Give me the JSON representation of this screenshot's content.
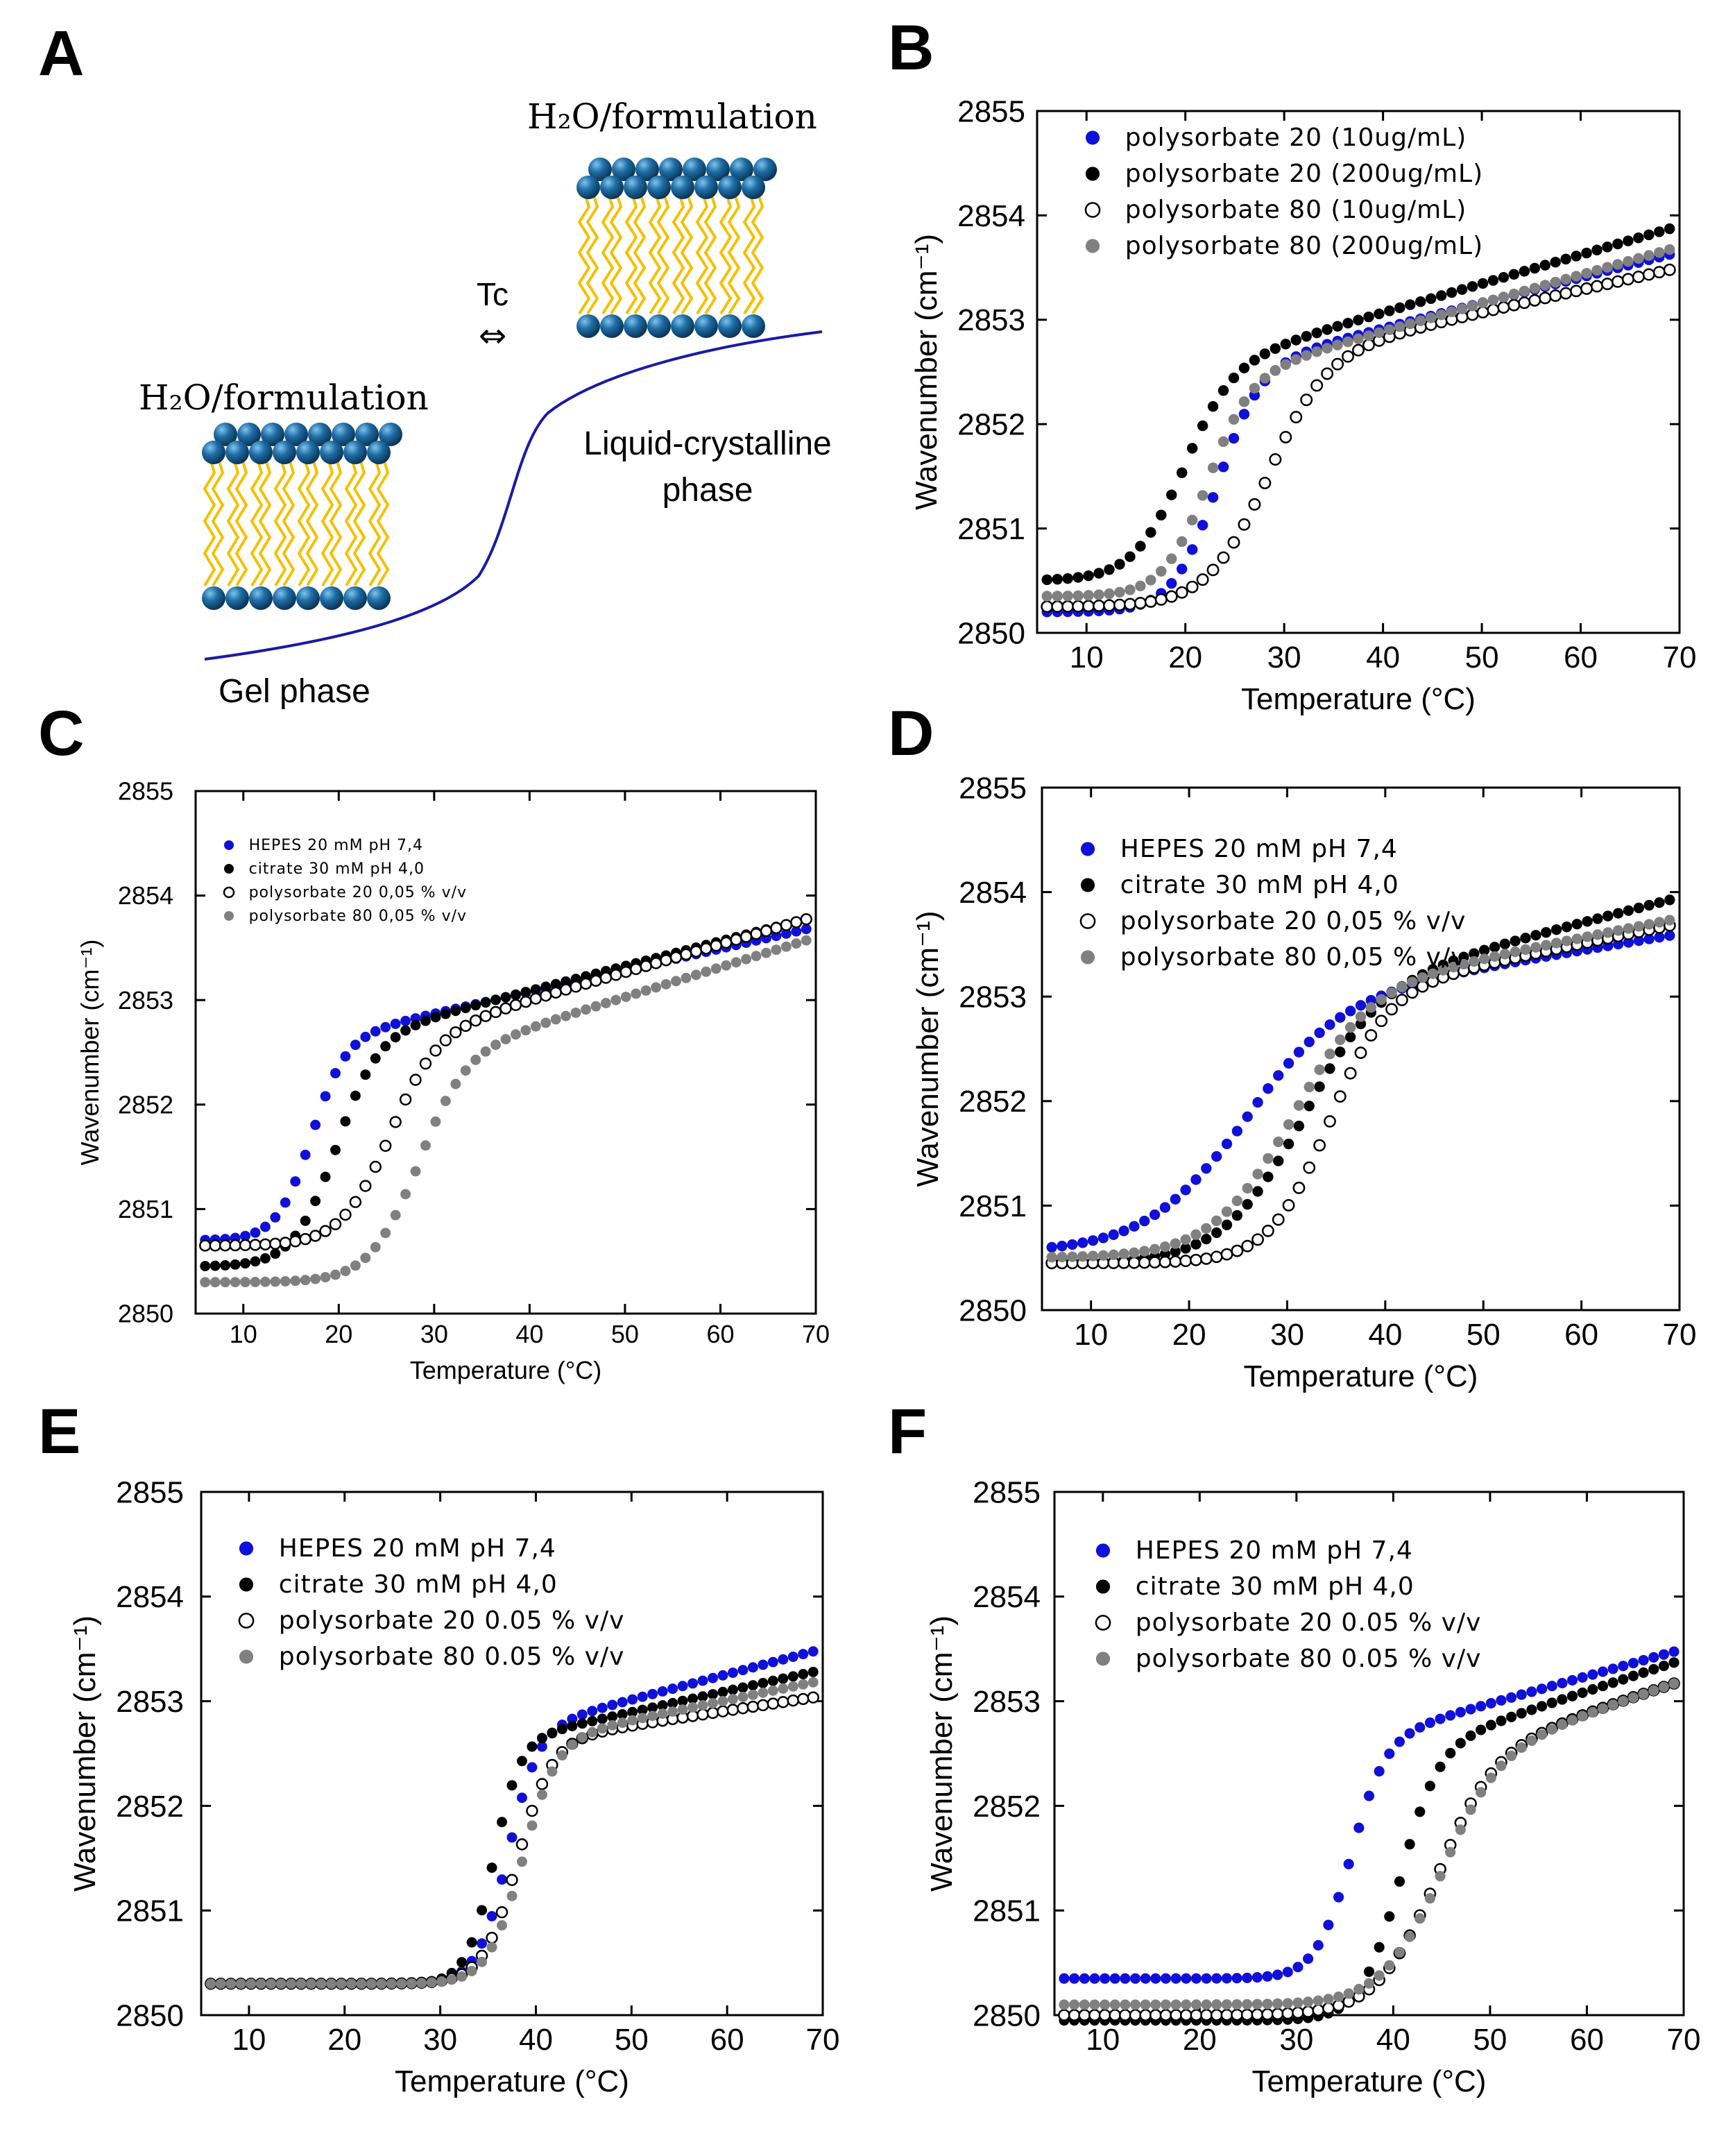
{
  "figure": {
    "panel_a": {
      "letter": "A",
      "label_top": "H₂O/formulation",
      "label_bottom": "H₂O/formulation",
      "arrow_label": "Tc",
      "arrow_symbol": "⇔",
      "phase_gel": "Gel phase",
      "phase_lc_line1": "Liquid-crystalline",
      "phase_lc_line2": "phase",
      "colors": {
        "head": "#1f6ea6",
        "tail": "#f5c000",
        "curve": "#1a1aa6"
      }
    }
  },
  "chart_data": [
    {
      "id": "B",
      "type": "scatter",
      "letter": "B",
      "xlabel": "Temperature (°C)",
      "ylabel": "Wavenumber (cm⁻¹)",
      "xlim": [
        5,
        70
      ],
      "ylim": [
        2850,
        2855
      ],
      "xticks": [
        10,
        20,
        30,
        40,
        50,
        60,
        70
      ],
      "yticks": [
        2850,
        2851,
        2852,
        2853,
        2854,
        2855
      ],
      "grid": false,
      "legend_position": "top-left",
      "series": [
        {
          "name": "polysorbate 20 (10ug/mL)",
          "color": "#1010d8",
          "marker": "filled",
          "lo": 2850.2,
          "hi": 2852.5,
          "tm": 23,
          "w": 2.2,
          "slope": 0.024,
          "end": 2853.65
        },
        {
          "name": "polysorbate 20 (200ug/mL)",
          "color": "#000000",
          "marker": "filled",
          "lo": 2850.5,
          "hi": 2852.5,
          "tm": 19.5,
          "w": 2.5,
          "slope": 0.029,
          "end": 2853.9
        },
        {
          "name": "polysorbate 80 (10ug/mL)",
          "color": "#000000",
          "marker": "open",
          "lo": 2850.25,
          "hi": 2852.6,
          "tm": 28,
          "w": 3.0,
          "slope": 0.02,
          "end": 2853.5
        },
        {
          "name": "polysorbate 80 (200ug/mL)",
          "color": "#808080",
          "marker": "filled",
          "lo": 2850.35,
          "hi": 2852.4,
          "tm": 22,
          "w": 2.2,
          "slope": 0.025,
          "end": 2853.7
        }
      ]
    },
    {
      "id": "C",
      "type": "scatter",
      "letter": "C",
      "xlabel": "Temperature (°C)",
      "ylabel": "Wavenumber (cm⁻¹)",
      "xlim": [
        5,
        70
      ],
      "ylim": [
        2850,
        2855
      ],
      "xticks": [
        10,
        20,
        30,
        40,
        50,
        60,
        70
      ],
      "yticks": [
        2850,
        2851,
        2852,
        2853,
        2854,
        2855
      ],
      "grid": false,
      "legend_position": "top-left",
      "series": [
        {
          "name": "HEPES 20 mM pH 7,4",
          "color": "#1010d8",
          "marker": "filled",
          "lo": 2850.7,
          "hi": 2852.6,
          "tm": 17,
          "w": 1.8,
          "slope": 0.024,
          "end": 2853.7
        },
        {
          "name": "citrate 30 mM pH 4,0",
          "color": "#000000",
          "marker": "filled",
          "lo": 2850.45,
          "hi": 2852.6,
          "tm": 19.5,
          "w": 2.2,
          "slope": 0.024,
          "end": 2853.8
        },
        {
          "name": "polysorbate 20 0,05 % v/v",
          "color": "#000000",
          "marker": "open",
          "lo": 2850.65,
          "hi": 2852.6,
          "tm": 25,
          "w": 2.5,
          "slope": 0.022,
          "end": 2853.8
        },
        {
          "name": "polysorbate 80 0,05 % v/v",
          "color": "#808080",
          "marker": "filled",
          "lo": 2850.3,
          "hi": 2852.4,
          "tm": 28,
          "w": 2.5,
          "slope": 0.02,
          "end": 2853.6
        }
      ]
    },
    {
      "id": "D",
      "type": "scatter",
      "letter": "D",
      "xlabel": "Temperature (°C)",
      "ylabel": "Wavenumber (cm⁻¹)",
      "xlim": [
        5,
        70
      ],
      "ylim": [
        2850,
        2855
      ],
      "xticks": [
        10,
        20,
        30,
        40,
        50,
        60,
        70
      ],
      "yticks": [
        2850,
        2851,
        2852,
        2853,
        2854,
        2855
      ],
      "grid": false,
      "legend_position": "top-left",
      "series": [
        {
          "name": "HEPES 20 mM pH 7,4",
          "color": "#1010d8",
          "marker": "filled",
          "lo": 2850.55,
          "hi": 2852.9,
          "tm": 25,
          "w": 5.0,
          "slope": 0.015,
          "end": 2853.6
        },
        {
          "name": "citrate 30 mM pH 4,0",
          "color": "#000000",
          "marker": "filled",
          "lo": 2850.45,
          "hi": 2853.0,
          "tm": 31,
          "w": 4.0,
          "slope": 0.022,
          "end": 2853.95
        },
        {
          "name": "polysorbate 20 0,05 % v/v",
          "color": "#000000",
          "marker": "open",
          "lo": 2850.45,
          "hi": 2853.0,
          "tm": 34,
          "w": 3.0,
          "slope": 0.02,
          "end": 2853.7
        },
        {
          "name": "polysorbate 80 0,05 % v/v",
          "color": "#808080",
          "marker": "filled",
          "lo": 2850.5,
          "hi": 2853.0,
          "tm": 30,
          "w": 4.0,
          "slope": 0.02,
          "end": 2853.75
        }
      ]
    },
    {
      "id": "E",
      "type": "scatter",
      "letter": "E",
      "xlabel": "Temperature (°C)",
      "ylabel": "Wavenumber (cm⁻¹)",
      "xlim": [
        5,
        70
      ],
      "ylim": [
        2850,
        2855
      ],
      "xticks": [
        10,
        20,
        30,
        40,
        50,
        60,
        70
      ],
      "yticks": [
        2850,
        2851,
        2852,
        2853,
        2854,
        2855
      ],
      "grid": false,
      "legend_position": "top-left",
      "series": [
        {
          "name": "HEPES 20 mM pH 7,4",
          "color": "#1010d8",
          "marker": "filled",
          "lo": 2850.3,
          "hi": 2852.7,
          "tm": 37,
          "w": 1.6,
          "slope": 0.026,
          "end": 2853.5
        },
        {
          "name": "citrate 30 mM pH 4,0",
          "color": "#000000",
          "marker": "filled",
          "lo": 2850.3,
          "hi": 2852.6,
          "tm": 35.5,
          "w": 1.4,
          "slope": 0.022,
          "end": 2853.3
        },
        {
          "name": "polysorbate 20 0.05 % v/v",
          "color": "#000000",
          "marker": "open",
          "lo": 2850.3,
          "hi": 2852.6,
          "tm": 38,
          "w": 1.8,
          "slope": 0.015,
          "end": 2853.05
        },
        {
          "name": "polysorbate 80 0.05 % v/v",
          "color": "#808080",
          "marker": "filled",
          "lo": 2850.3,
          "hi": 2852.6,
          "tm": 38.5,
          "w": 1.8,
          "slope": 0.018,
          "end": 2853.2
        }
      ]
    },
    {
      "id": "F",
      "type": "scatter",
      "letter": "F",
      "xlabel": "Temperature (°C)",
      "ylabel": "Wavenumber (cm⁻¹)",
      "xlim": [
        5,
        70
      ],
      "ylim": [
        2850,
        2855
      ],
      "xticks": [
        10,
        20,
        30,
        40,
        50,
        60,
        70
      ],
      "yticks": [
        2850,
        2851,
        2852,
        2853,
        2854,
        2855
      ],
      "grid": false,
      "legend_position": "top-left",
      "series": [
        {
          "name": "HEPES 20 mM pH 7,4",
          "color": "#1010d8",
          "marker": "filled",
          "lo": 2850.35,
          "hi": 2852.6,
          "tm": 35.5,
          "w": 1.8,
          "slope": 0.028,
          "end": 2853.5
        },
        {
          "name": "citrate 30 mM pH 4,0",
          "color": "#000000",
          "marker": "filled",
          "lo": 2849.95,
          "hi": 2852.5,
          "tm": 40.5,
          "w": 2.0,
          "slope": 0.028,
          "end": 2853.4
        },
        {
          "name": "polysorbate 20 0.05 % v/v",
          "color": "#000000",
          "marker": "open",
          "lo": 2850.0,
          "hi": 2852.4,
          "tm": 44,
          "w": 3.0,
          "slope": 0.024,
          "end": 2853.2
        },
        {
          "name": "polysorbate 80 0.05 % v/v",
          "color": "#808080",
          "marker": "filled",
          "lo": 2850.1,
          "hi": 2852.4,
          "tm": 44.5,
          "w": 3.0,
          "slope": 0.024,
          "end": 2853.2
        }
      ]
    }
  ]
}
